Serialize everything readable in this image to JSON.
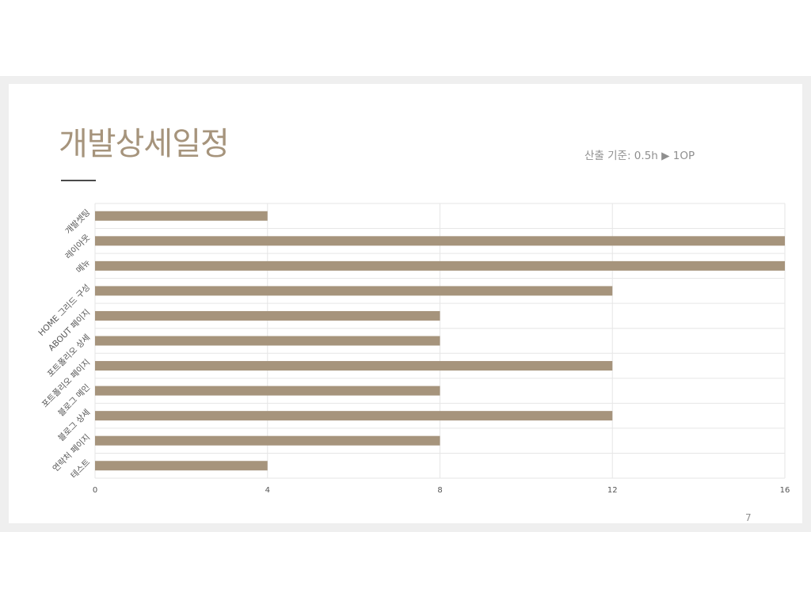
{
  "slide": {
    "title": "개발상세일정",
    "subtitle": "산출 기준: 0.5h ▶ 1OP",
    "page_number": "7"
  },
  "chart_data": {
    "type": "bar",
    "orientation": "horizontal",
    "categories": [
      "개발셋팅",
      "레이아웃",
      "메뉴",
      "HOME 그리드 구성",
      "ABOUT 페이지",
      "포트폴리오 상세",
      "포트폴리오 페이지",
      "블로그 메인",
      "블로그 상세",
      "연락처 페이지",
      "테스트"
    ],
    "values": [
      4,
      16,
      16,
      12,
      8,
      8,
      12,
      8,
      12,
      8,
      4
    ],
    "xlim": [
      0,
      16
    ],
    "x_ticks": [
      0,
      4,
      8,
      12,
      16
    ],
    "grid": true,
    "legend": "none",
    "bar_color": "#a6947c"
  }
}
